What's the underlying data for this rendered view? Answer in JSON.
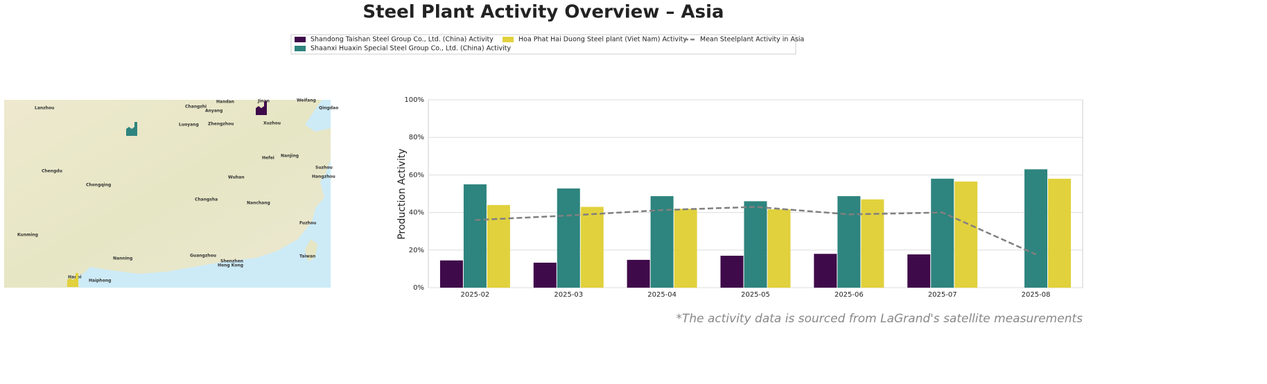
{
  "chart_data": {
    "type": "bar",
    "title": "Steel Plant Activity Overview – Asia",
    "y_label": "Production Activity",
    "footnote": "*The activity data is sourced from LaGrand's satellite measurements",
    "categories": [
      "2025-02",
      "2025-03",
      "2025-04",
      "2025-05",
      "2025-06",
      "2025-07",
      "2025-08"
    ],
    "series": [
      {
        "name": "Shandong Taishan Steel Group Co., Ltd. (China) Activity",
        "color": "#3f0a4a",
        "values": [
          14.5,
          13.3,
          14.8,
          17,
          18,
          17.7,
          null
        ]
      },
      {
        "name": "Shaanxi Huaxin Special Steel Group Co., Ltd. (China) Activity",
        "color": "#2e847e",
        "values": [
          55,
          52.8,
          48.7,
          46,
          48.7,
          58,
          63
        ]
      },
      {
        "name": "Hoa Phat Hai Duong Steel plant (Viet Nam) Activity",
        "color": "#e1d13d",
        "values": [
          44,
          43,
          42,
          41.7,
          47,
          56.5,
          58
        ]
      },
      {
        "name": "Mean Steelplant Activity in Asia",
        "type": "line",
        "color": "#808080",
        "values": [
          36,
          38.4,
          41.3,
          43,
          39,
          40,
          17.7
        ]
      }
    ],
    "ylim": [
      0,
      100
    ],
    "yticks": [
      {
        "value": 0,
        "label": "0%"
      },
      {
        "value": 20,
        "label": "20%"
      },
      {
        "value": 40,
        "label": "40%"
      },
      {
        "value": 60,
        "label": "60%"
      },
      {
        "value": 80,
        "label": "80%"
      },
      {
        "value": 100,
        "label": "100%"
      }
    ],
    "grid": true,
    "legend": "top",
    "map_labels": [
      "Lanzhou",
      "Handan",
      "Jinan",
      "Weifang",
      "Qingdao",
      "Changzhi",
      "Anyang",
      "Luoyang",
      "Zhengzhou",
      "Xuzhou",
      "Hefei",
      "Nanjing",
      "Suzhou",
      "Hangzhou",
      "Chengdu",
      "Chongqing",
      "Wuhan",
      "Changsha",
      "Nanchang",
      "Fuzhou",
      "Guangzhou",
      "Shenzhen",
      "Hong Kong",
      "Nanning",
      "Kunming",
      "Taiwan",
      "Hanoi",
      "Haiphong"
    ]
  }
}
